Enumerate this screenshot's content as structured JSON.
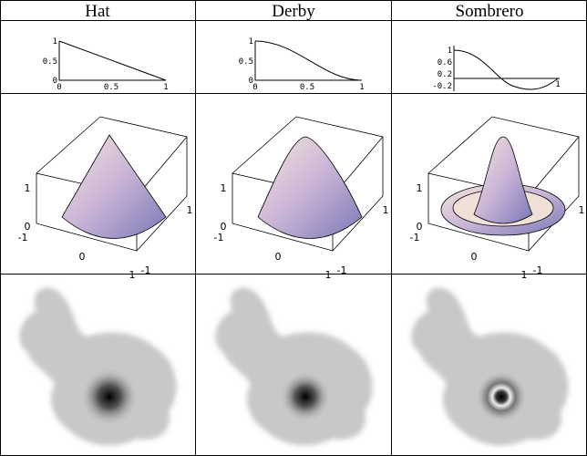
{
  "header": [
    "Hat",
    "Derby",
    "Sombrero"
  ],
  "plots": [
    {
      "yticks": [
        "1",
        "0.5",
        "0"
      ],
      "xticks": [
        "0",
        "0.5",
        "1"
      ]
    },
    {
      "yticks": [
        "1",
        "0.5",
        "0"
      ],
      "xticks": [
        "0",
        "0.5",
        "1"
      ]
    },
    {
      "yticks": [
        "1",
        "0.6",
        "0.2",
        "-0.2"
      ],
      "xticks": [
        "1"
      ]
    }
  ],
  "surfaces": [
    {
      "labels": [
        "1",
        "0",
        "-1",
        "0",
        "1",
        "-1",
        "1"
      ]
    },
    {
      "labels": [
        "1",
        "0",
        "-1",
        "0",
        "1",
        "-1",
        "1"
      ]
    },
    {
      "labels": [
        "1",
        "0",
        "-1",
        "0",
        "1",
        "-1",
        "1"
      ]
    }
  ]
}
